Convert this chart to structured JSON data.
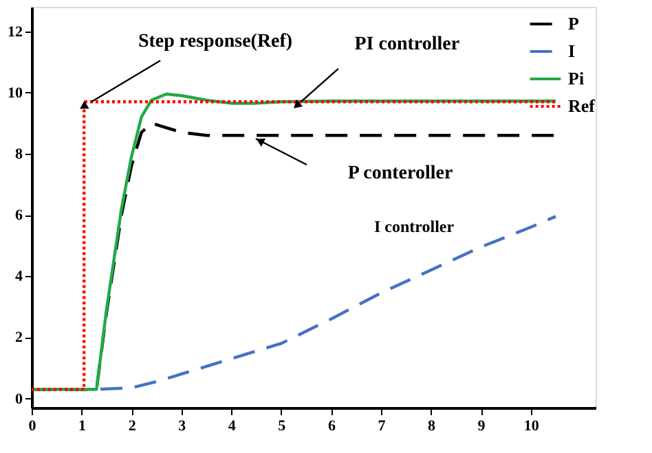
{
  "chart_data": {
    "type": "line",
    "xlim": [
      0,
      11.3
    ],
    "ylim": [
      -0.3,
      12.8
    ],
    "xticks": [
      0,
      1,
      2,
      3,
      4,
      5,
      6,
      7,
      8,
      9,
      10
    ],
    "yticks": [
      0,
      2,
      4,
      6,
      8,
      10,
      12
    ],
    "grid": false,
    "legend": "top right",
    "marker": "none",
    "series": [
      {
        "name": "P",
        "color": "#000000",
        "line_style": "dashed",
        "x": [
          0,
          1.3,
          1.5,
          1.8,
          2.0,
          2.2,
          2.4,
          2.6,
          3.0,
          3.5,
          4,
          10.5
        ],
        "values": [
          0.3,
          0.3,
          2.8,
          6.0,
          7.6,
          8.7,
          9.0,
          8.9,
          8.7,
          8.6,
          8.6,
          8.6
        ]
      },
      {
        "name": "I",
        "color": "#4472c4",
        "line_style": "dashed",
        "x": [
          0,
          1.3,
          2,
          2.5,
          3,
          3.5,
          4,
          4.5,
          5,
          6,
          7,
          8,
          9,
          10,
          10.5
        ],
        "values": [
          0.3,
          0.3,
          0.35,
          0.55,
          0.8,
          1.05,
          1.3,
          1.55,
          1.8,
          2.6,
          3.45,
          4.2,
          4.95,
          5.6,
          5.95
        ]
      },
      {
        "name": "Pi",
        "color": "#22aa44",
        "line_style": "solid",
        "x": [
          0,
          1.3,
          1.5,
          1.8,
          2.0,
          2.2,
          2.4,
          2.7,
          3.0,
          3.5,
          4.0,
          4.5,
          5,
          6,
          10.5
        ],
        "values": [
          0.3,
          0.3,
          2.9,
          6.2,
          7.9,
          9.2,
          9.75,
          9.95,
          9.9,
          9.75,
          9.65,
          9.65,
          9.7,
          9.72,
          9.72
        ]
      },
      {
        "name": "Ref",
        "color": "#ff0000",
        "line_style": "dotted",
        "x": [
          0,
          1.05,
          1.05,
          10.5
        ],
        "values": [
          0.3,
          0.3,
          9.7,
          9.7
        ]
      }
    ],
    "annotations": [
      {
        "text": "Step response(Ref)",
        "x": 1.2,
        "y": 9.7
      },
      {
        "text": "PI controller",
        "x": 5.4,
        "y": 9.7
      },
      "P conteroller",
      "I controller"
    ]
  }
}
